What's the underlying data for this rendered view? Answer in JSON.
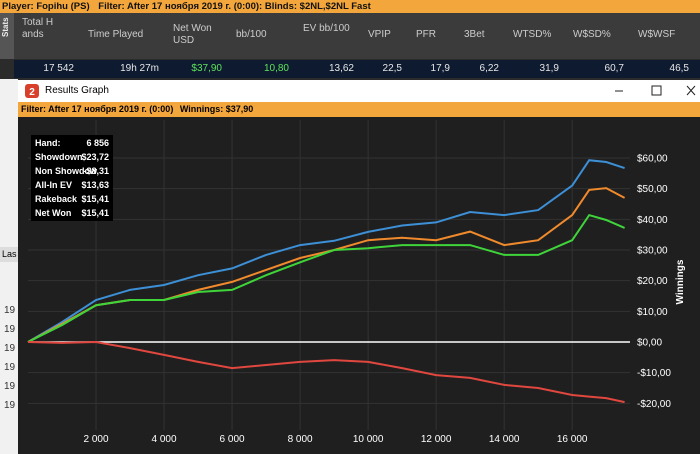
{
  "header": {
    "player": "Player: Fopihu (PS)",
    "filter": "Filter: After 17 ноября 2019 г. (0:00): Blinds: $2NL,$2NL Fast",
    "side_tab": "Stats"
  },
  "stats_table": {
    "columns": [
      "Total Hands",
      "Time Played",
      "Net Won USD",
      "bb/100",
      "EV bb/100",
      "VPIP",
      "PFR",
      "3Bet",
      "WTSD%",
      "W$SD%",
      "W$WSF"
    ],
    "row": [
      "17 542",
      "19h 27m",
      "$37,90",
      "10,80",
      "13,62",
      "22,5",
      "17,9",
      "6,22",
      "31,9",
      "60,7",
      "46,5"
    ]
  },
  "background": {
    "tab": "Las",
    "rows": [
      "19",
      "19",
      "19",
      "19",
      "19",
      "19"
    ]
  },
  "window": {
    "title": "Results Graph",
    "filter": "Filter: After 17 ноября 2019 г. (0:00)",
    "winnings": "Winnings: $37,90"
  },
  "info_box": [
    [
      "Hand:",
      "6 856"
    ],
    [
      "Showdown",
      "$23,72"
    ],
    [
      "Non Showdow",
      "-$8,31"
    ],
    [
      "All-In EV",
      "$13,63"
    ],
    [
      "Rakeback",
      "$15,41"
    ],
    [
      "Net Won",
      "$15,41"
    ]
  ],
  "chart_data": {
    "type": "line",
    "y_label": "Winnings",
    "grid": true,
    "zero_line": true,
    "x": [
      0,
      1000,
      2000,
      3000,
      4000,
      5000,
      6000,
      7000,
      8000,
      9000,
      10000,
      11000,
      12000,
      13000,
      14000,
      15000,
      16000,
      16500,
      17000,
      17542
    ],
    "series": [
      {
        "color": "#3d8fd6",
        "values": [
          0,
          6.5,
          13.7,
          17,
          18.6,
          21.8,
          24,
          28.4,
          31.6,
          33,
          35.9,
          38,
          39,
          42.4,
          41.4,
          43,
          51,
          59.3,
          58.7,
          56.7
        ]
      },
      {
        "color": "#f08a2c",
        "values": [
          0,
          5.9,
          12,
          13.7,
          13.7,
          17,
          19.6,
          23.5,
          27.4,
          30,
          33.2,
          34,
          33.2,
          36,
          31.6,
          33.2,
          41.4,
          49.6,
          50.2,
          47
        ]
      },
      {
        "color": "#3fd53a",
        "values": [
          0,
          5.5,
          12,
          13.7,
          13.7,
          16.3,
          17,
          21.8,
          26,
          30,
          30.6,
          31.6,
          31.6,
          31.6,
          28.4,
          28.4,
          33.2,
          41.4,
          39.8,
          37.2
        ]
      },
      {
        "color": "#e0473f",
        "values": [
          0,
          -0.3,
          0,
          -2,
          -4.2,
          -6.5,
          -8.5,
          -7.5,
          -6.5,
          -5.9,
          -6.5,
          -8.5,
          -10.8,
          -11.7,
          -14,
          -15,
          -17.3,
          -17.8,
          -18.3,
          -19.6
        ]
      }
    ],
    "xlim": [
      0,
      17700
    ],
    "ylim": [
      -28.7,
      72.4
    ],
    "xticks": [
      {
        "value": 2000,
        "label": "2 000"
      },
      {
        "value": 4000,
        "label": "4 000"
      },
      {
        "value": 6000,
        "label": "6 000"
      },
      {
        "value": 8000,
        "label": "8 000"
      },
      {
        "value": 10000,
        "label": "10 000"
      },
      {
        "value": 12000,
        "label": "12 000"
      },
      {
        "value": 14000,
        "label": "14 000"
      },
      {
        "value": 16000,
        "label": "16 000"
      }
    ],
    "yticks": [
      {
        "value": -20,
        "label": "-$20,00"
      },
      {
        "value": -10,
        "label": "-$10,00"
      },
      {
        "value": 0,
        "label": "$0,00"
      },
      {
        "value": 10,
        "label": "$10,00"
      },
      {
        "value": 20,
        "label": "$20,00"
      },
      {
        "value": 30,
        "label": "$30,00"
      },
      {
        "value": 40,
        "label": "$40,00"
      },
      {
        "value": 50,
        "label": "$50,00"
      },
      {
        "value": 60,
        "label": "$60,00"
      }
    ]
  }
}
